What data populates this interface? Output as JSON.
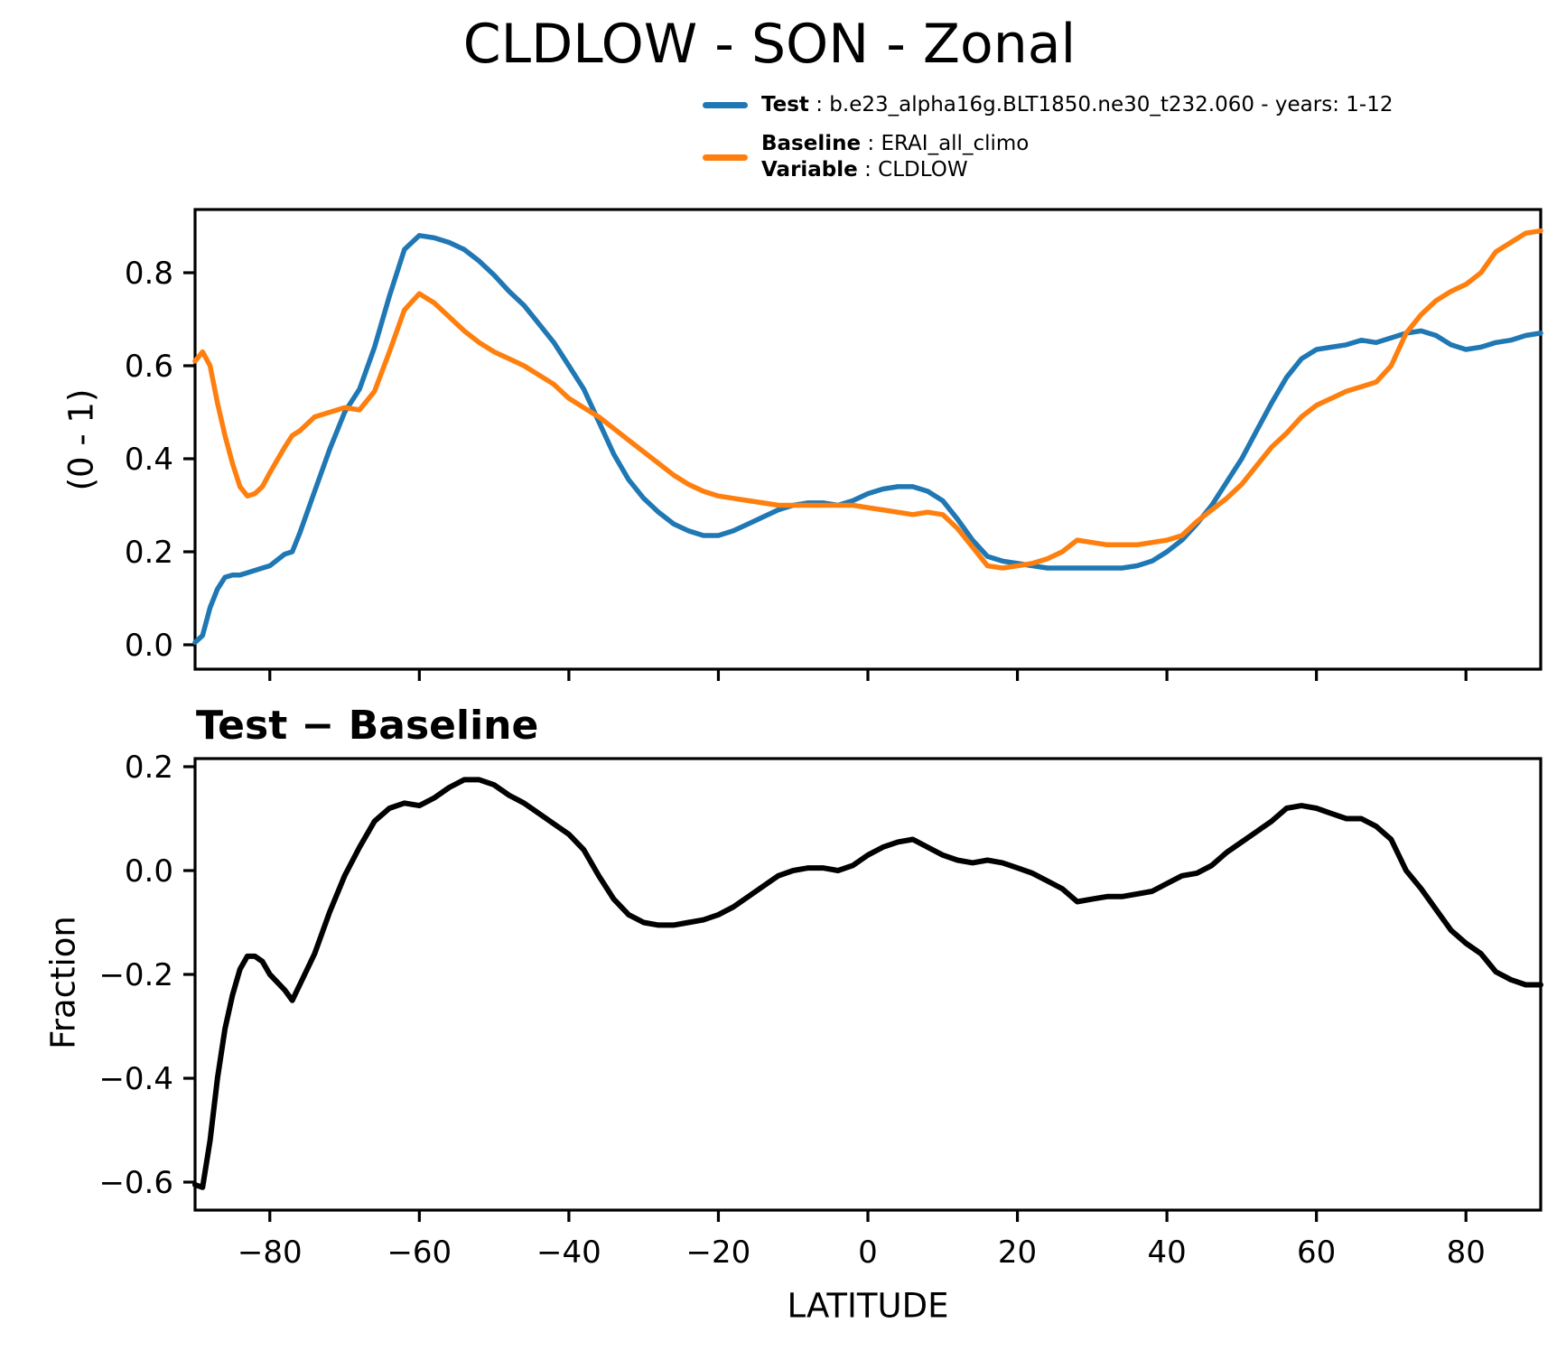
{
  "title": "CLDLOW - SON - Zonal",
  "legend": {
    "test": {
      "key": "Test",
      "sep": " : ",
      "value": "b.e23_alpha16g.BLT1850.ne30_t232.060 - years: 1-12"
    },
    "baseline": {
      "key": "Baseline",
      "sep": " : ",
      "value": "ERAI_all_climo"
    },
    "variable": {
      "key": "Variable",
      "sep": " : ",
      "value": "CLDLOW"
    }
  },
  "colors": {
    "test": "#1f77b4",
    "baseline": "#ff7f0e",
    "diff": "#000000"
  },
  "chart_data": [
    {
      "type": "line",
      "title": "CLDLOW - SON - Zonal",
      "xlabel": "",
      "ylabel": "(0 - 1)",
      "xlim": [
        -90,
        90
      ],
      "ylim": [
        -0.05,
        0.94
      ],
      "xticks": [
        -80,
        -60,
        -40,
        -20,
        0,
        20,
        40,
        60,
        80
      ],
      "xtick_labels_visible": false,
      "yticks": [
        0.0,
        0.2,
        0.4,
        0.6,
        0.8
      ],
      "grid": false,
      "legend_position": "upper right, above axes",
      "x": [
        -90,
        -89,
        -88,
        -87,
        -86,
        -85,
        -84,
        -83,
        -82,
        -81,
        -80,
        -78,
        -77,
        -76,
        -74,
        -72,
        -70,
        -68,
        -66,
        -64,
        -62,
        -60,
        -58,
        -56,
        -54,
        -52,
        -50,
        -48,
        -46,
        -44,
        -42,
        -40,
        -38,
        -36,
        -34,
        -32,
        -30,
        -28,
        -26,
        -24,
        -22,
        -20,
        -18,
        -16,
        -14,
        -12,
        -10,
        -8,
        -6,
        -4,
        -2,
        0,
        2,
        4,
        6,
        8,
        10,
        12,
        14,
        16,
        18,
        20,
        22,
        24,
        26,
        28,
        30,
        32,
        34,
        36,
        38,
        40,
        42,
        44,
        46,
        48,
        50,
        52,
        54,
        56,
        58,
        60,
        62,
        64,
        66,
        68,
        70,
        72,
        74,
        76,
        78,
        80,
        82,
        84,
        86,
        88,
        90
      ],
      "series": [
        {
          "name": "Test",
          "color": "#1f77b4",
          "values": [
            0.005,
            0.02,
            0.08,
            0.12,
            0.145,
            0.15,
            0.15,
            0.155,
            0.16,
            0.165,
            0.17,
            0.195,
            0.2,
            0.24,
            0.33,
            0.42,
            0.5,
            0.55,
            0.64,
            0.75,
            0.85,
            0.88,
            0.875,
            0.865,
            0.85,
            0.825,
            0.795,
            0.76,
            0.73,
            0.69,
            0.65,
            0.6,
            0.55,
            0.48,
            0.41,
            0.355,
            0.315,
            0.285,
            0.26,
            0.245,
            0.235,
            0.235,
            0.245,
            0.26,
            0.275,
            0.29,
            0.3,
            0.305,
            0.305,
            0.3,
            0.31,
            0.325,
            0.335,
            0.34,
            0.34,
            0.33,
            0.31,
            0.27,
            0.225,
            0.19,
            0.18,
            0.175,
            0.17,
            0.165,
            0.165,
            0.165,
            0.165,
            0.165,
            0.165,
            0.17,
            0.18,
            0.2,
            0.225,
            0.26,
            0.3,
            0.35,
            0.4,
            0.46,
            0.52,
            0.575,
            0.615,
            0.635,
            0.64,
            0.645,
            0.655,
            0.65,
            0.66,
            0.67,
            0.675,
            0.665,
            0.645,
            0.635,
            0.64,
            0.65,
            0.655,
            0.665,
            0.67
          ]
        },
        {
          "name": "Baseline",
          "color": "#ff7f0e",
          "values": [
            0.61,
            0.63,
            0.6,
            0.52,
            0.45,
            0.39,
            0.34,
            0.32,
            0.325,
            0.34,
            0.37,
            0.425,
            0.45,
            0.46,
            0.49,
            0.5,
            0.51,
            0.505,
            0.545,
            0.63,
            0.72,
            0.755,
            0.735,
            0.705,
            0.675,
            0.65,
            0.63,
            0.615,
            0.6,
            0.58,
            0.56,
            0.53,
            0.51,
            0.49,
            0.465,
            0.44,
            0.415,
            0.39,
            0.365,
            0.345,
            0.33,
            0.32,
            0.315,
            0.31,
            0.305,
            0.3,
            0.3,
            0.3,
            0.3,
            0.3,
            0.3,
            0.295,
            0.29,
            0.285,
            0.28,
            0.285,
            0.28,
            0.25,
            0.21,
            0.17,
            0.165,
            0.17,
            0.175,
            0.185,
            0.2,
            0.225,
            0.22,
            0.215,
            0.215,
            0.215,
            0.22,
            0.225,
            0.235,
            0.265,
            0.29,
            0.315,
            0.345,
            0.385,
            0.425,
            0.455,
            0.49,
            0.515,
            0.53,
            0.545,
            0.555,
            0.565,
            0.6,
            0.67,
            0.71,
            0.74,
            0.76,
            0.775,
            0.8,
            0.845,
            0.865,
            0.885,
            0.89
          ]
        }
      ]
    },
    {
      "type": "line",
      "title": "Test − Baseline",
      "xlabel": "LATITUDE",
      "ylabel": "Fraction",
      "xlim": [
        -90,
        90
      ],
      "ylim": [
        -0.65,
        0.22
      ],
      "xticks": [
        -80,
        -60,
        -40,
        -20,
        0,
        20,
        40,
        60,
        80
      ],
      "xtick_labels_visible": true,
      "yticks": [
        0.2,
        0.0,
        -0.2,
        -0.4,
        -0.6
      ],
      "grid": false,
      "x": [
        -90,
        -89,
        -88,
        -87,
        -86,
        -85,
        -84,
        -83,
        -82,
        -81,
        -80,
        -78,
        -77,
        -76,
        -74,
        -72,
        -70,
        -68,
        -66,
        -64,
        -62,
        -60,
        -58,
        -56,
        -54,
        -52,
        -50,
        -48,
        -46,
        -44,
        -42,
        -40,
        -38,
        -36,
        -34,
        -32,
        -30,
        -28,
        -26,
        -24,
        -22,
        -20,
        -18,
        -16,
        -14,
        -12,
        -10,
        -8,
        -6,
        -4,
        -2,
        0,
        2,
        4,
        6,
        8,
        10,
        12,
        14,
        16,
        18,
        20,
        22,
        24,
        26,
        28,
        30,
        32,
        34,
        36,
        38,
        40,
        42,
        44,
        46,
        48,
        50,
        52,
        54,
        56,
        58,
        60,
        62,
        64,
        66,
        68,
        70,
        72,
        74,
        76,
        78,
        80,
        82,
        84,
        86,
        88,
        90
      ],
      "series": [
        {
          "name": "Test − Baseline",
          "color": "#000000",
          "values": [
            -0.605,
            -0.61,
            -0.52,
            -0.4,
            -0.305,
            -0.24,
            -0.19,
            -0.165,
            -0.165,
            -0.175,
            -0.2,
            -0.23,
            -0.25,
            -0.22,
            -0.16,
            -0.08,
            -0.01,
            0.045,
            0.095,
            0.12,
            0.13,
            0.125,
            0.14,
            0.16,
            0.175,
            0.175,
            0.165,
            0.145,
            0.13,
            0.11,
            0.09,
            0.07,
            0.04,
            -0.01,
            -0.055,
            -0.085,
            -0.1,
            -0.105,
            -0.105,
            -0.1,
            -0.095,
            -0.085,
            -0.07,
            -0.05,
            -0.03,
            -0.01,
            0.0,
            0.005,
            0.005,
            0.0,
            0.01,
            0.03,
            0.045,
            0.055,
            0.06,
            0.045,
            0.03,
            0.02,
            0.015,
            0.02,
            0.015,
            0.005,
            -0.005,
            -0.02,
            -0.035,
            -0.06,
            -0.055,
            -0.05,
            -0.05,
            -0.045,
            -0.04,
            -0.025,
            -0.01,
            -0.005,
            0.01,
            0.035,
            0.055,
            0.075,
            0.095,
            0.12,
            0.125,
            0.12,
            0.11,
            0.1,
            0.1,
            0.085,
            0.06,
            0.0,
            -0.035,
            -0.075,
            -0.115,
            -0.14,
            -0.16,
            -0.195,
            -0.21,
            -0.22,
            -0.22
          ]
        }
      ]
    }
  ]
}
